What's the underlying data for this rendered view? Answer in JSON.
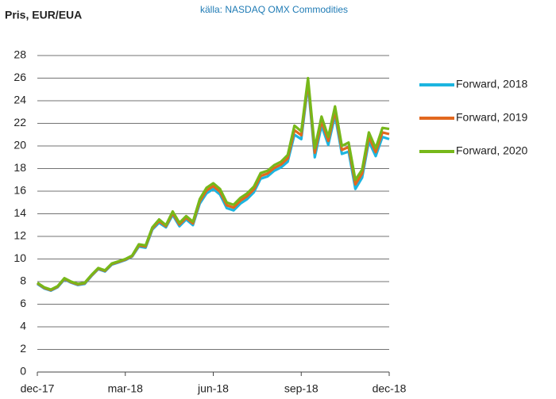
{
  "chart_data": {
    "type": "line",
    "title": "Pris, EUR/EUA",
    "subtitle": "källa: NASDAQ OMX Commodities",
    "x": [
      0,
      1,
      2,
      3,
      4,
      5,
      6,
      7,
      8,
      9,
      10,
      11,
      12,
      13,
      14,
      15,
      16,
      17,
      18,
      19,
      20,
      21,
      22,
      23,
      24,
      25,
      26,
      27,
      28,
      29,
      30,
      31,
      32,
      33,
      34,
      35,
      36,
      37,
      38,
      39,
      40,
      41,
      42,
      43,
      44,
      45,
      46,
      47,
      48,
      49,
      50,
      51,
      52
    ],
    "xlim": [
      0,
      52
    ],
    "xticks": [
      {
        "value": 0,
        "label": "dec-17"
      },
      {
        "value": 13,
        "label": "mar-18"
      },
      {
        "value": 26,
        "label": "jun-18"
      },
      {
        "value": 39,
        "label": "sep-18"
      },
      {
        "value": 52,
        "label": "dec-18"
      }
    ],
    "ylim": [
      0,
      28
    ],
    "yticks": [
      0,
      2,
      4,
      6,
      8,
      10,
      12,
      14,
      16,
      18,
      20,
      22,
      24,
      26,
      28
    ],
    "grid": true,
    "legend": "right",
    "series": [
      {
        "name": "Forward, 2018",
        "color": "#1cb5e0",
        "values": [
          7.8,
          7.4,
          7.2,
          7.5,
          8.2,
          7.9,
          7.7,
          7.8,
          8.5,
          9.1,
          8.9,
          9.5,
          9.7,
          9.9,
          10.2,
          11.1,
          11.0,
          12.6,
          13.2,
          12.8,
          13.9,
          12.9,
          13.5,
          13.0,
          14.9,
          15.8,
          16.2,
          15.7,
          14.5,
          14.3,
          14.9,
          15.3,
          15.9,
          17.1,
          17.3,
          17.8,
          18.1,
          18.6,
          21.0,
          20.6,
          25.4,
          19.0,
          21.8,
          20.1,
          22.7,
          19.3,
          19.5,
          16.2,
          17.2,
          20.4,
          19.1,
          20.8,
          20.6
        ]
      },
      {
        "name": "Forward, 2019",
        "color": "#e2681f",
        "values": [
          7.85,
          7.45,
          7.25,
          7.55,
          8.25,
          7.95,
          7.75,
          7.85,
          8.55,
          9.15,
          8.95,
          9.55,
          9.75,
          9.95,
          10.25,
          11.2,
          11.1,
          12.7,
          13.35,
          12.9,
          14.05,
          13.05,
          13.65,
          13.15,
          15.1,
          16.05,
          16.45,
          15.95,
          14.75,
          14.55,
          15.15,
          15.55,
          16.15,
          17.35,
          17.55,
          18.05,
          18.35,
          18.9,
          21.4,
          20.95,
          25.7,
          19.4,
          22.2,
          20.45,
          23.1,
          19.65,
          19.9,
          16.6,
          17.55,
          20.8,
          19.45,
          21.2,
          21.05
        ]
      },
      {
        "name": "Forward, 2020",
        "color": "#77b81a",
        "values": [
          7.9,
          7.5,
          7.3,
          7.6,
          8.3,
          8.0,
          7.8,
          7.9,
          8.6,
          9.2,
          9.0,
          9.6,
          9.8,
          10.0,
          10.3,
          11.3,
          11.2,
          12.8,
          13.5,
          13.0,
          14.2,
          13.2,
          13.8,
          13.3,
          15.3,
          16.3,
          16.7,
          16.2,
          15.0,
          14.8,
          15.4,
          15.8,
          16.4,
          17.6,
          17.8,
          18.3,
          18.6,
          19.2,
          21.8,
          21.3,
          26.0,
          19.8,
          22.6,
          20.8,
          23.5,
          20.0,
          20.3,
          17.0,
          17.9,
          21.2,
          19.8,
          21.6,
          21.5
        ]
      }
    ]
  }
}
